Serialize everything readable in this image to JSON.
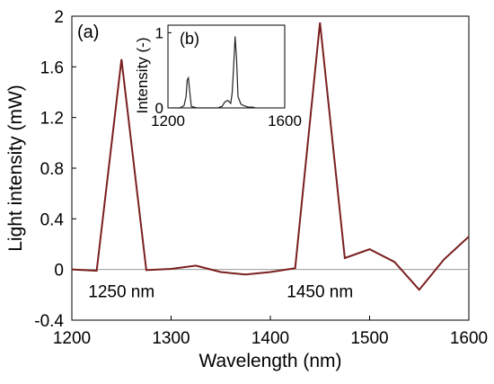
{
  "chart_data": [
    {
      "type": "line",
      "panel_label": "(a)",
      "xlabel": "Wavelength (nm)",
      "ylabel": "Light intensity (mW)",
      "xlim": [
        1200,
        1600
      ],
      "ylim": [
        -0.4,
        2.0
      ],
      "x_ticks": [
        1200,
        1300,
        1400,
        1500,
        1600
      ],
      "x_tick_labels": [
        "1200",
        "1300",
        "1400",
        "1500",
        "1600"
      ],
      "y_ticks": [
        -0.4,
        0,
        0.4,
        0.8,
        1.2,
        1.6,
        2.0
      ],
      "y_tick_labels": [
        "-0.4",
        "0",
        "0.4",
        "0.8",
        "1.2",
        "1.6",
        "2"
      ],
      "zero_line": true,
      "grid": false,
      "series": [
        {
          "color": "#7a1f1f",
          "x": [
            1200,
            1225,
            1250,
            1275,
            1300,
            1325,
            1350,
            1375,
            1400,
            1425,
            1450,
            1475,
            1500,
            1525,
            1550,
            1575,
            1600
          ],
          "y": [
            0.0,
            -0.01,
            1.66,
            -0.005,
            0.005,
            0.03,
            -0.02,
            -0.04,
            -0.02,
            0.01,
            1.95,
            0.09,
            0.16,
            0.06,
            -0.16,
            0.08,
            0.26
          ]
        }
      ],
      "annotations": [
        {
          "text": "1250 nm",
          "x": 1250,
          "y": -0.17
        },
        {
          "text": "1450 nm",
          "x": 1450,
          "y": -0.17
        }
      ]
    },
    {
      "type": "line",
      "panel_label": "(b)",
      "ylabel": "Intensity (-)",
      "xlim": [
        1200,
        1600
      ],
      "ylim": [
        0,
        1.1
      ],
      "x_ticks": [
        1200,
        1600
      ],
      "x_tick_labels": [
        "1200",
        "1600"
      ],
      "y_ticks": [
        0,
        1
      ],
      "y_tick_labels": [
        "0",
        "1"
      ],
      "series": [
        {
          "color": "#222222",
          "x": [
            1210,
            1240,
            1255,
            1262,
            1266,
            1270,
            1274,
            1280,
            1300,
            1340,
            1370,
            1385,
            1395,
            1405,
            1415,
            1420,
            1425,
            1430,
            1435,
            1440,
            1450,
            1460,
            1475,
            1490,
            1500
          ],
          "y": [
            0.0,
            0.0,
            0.03,
            0.15,
            0.37,
            0.4,
            0.24,
            0.02,
            0.0,
            0.0,
            0.0,
            0.02,
            0.08,
            0.1,
            0.06,
            0.2,
            0.55,
            0.95,
            0.65,
            0.15,
            0.05,
            0.03,
            0.01,
            0.01,
            0.0
          ]
        }
      ]
    }
  ]
}
